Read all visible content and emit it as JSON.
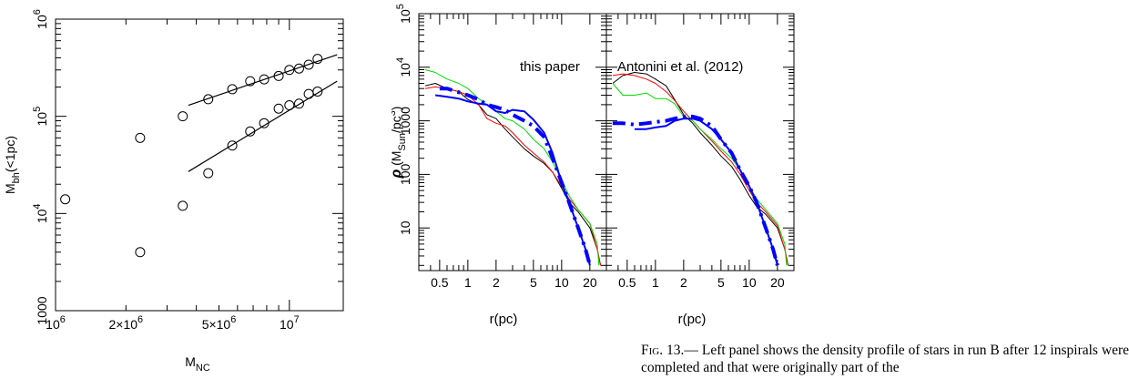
{
  "caption": {
    "label": "Fig. 13.",
    "text": "— Left panel shows the density profile of stars in run B after 12 inspirals were completed and that were originally part of the"
  },
  "chart_data": [
    {
      "type": "scatter",
      "title": "",
      "xlabel": "M_NC",
      "ylabel": "M_bh(<1pc)",
      "xscale": "log",
      "yscale": "log",
      "xlim": [
        1000000,
        17000000
      ],
      "ylim": [
        1000,
        1000000
      ],
      "x_tick_labels": [
        {
          "value": 1000000,
          "label": "10^6"
        },
        {
          "value": 2000000,
          "label": "2×10^6"
        },
        {
          "value": 5000000,
          "label": "5×10^6"
        },
        {
          "value": 10000000,
          "label": "10^7"
        }
      ],
      "y_tick_labels": [
        {
          "value": 1000,
          "label": "1000"
        },
        {
          "value": 10000,
          "label": "10^4"
        },
        {
          "value": 100000,
          "label": "10^5"
        },
        {
          "value": 1000000,
          "label": "10^6"
        }
      ],
      "series": [
        {
          "marker": "open-circle",
          "points": [
            [
              1100000,
              14000
            ],
            [
              2300000,
              60000
            ],
            [
              2300000,
              4000
            ],
            [
              3500000,
              100000
            ],
            [
              3500000,
              12000
            ],
            [
              4500000,
              26000
            ],
            [
              4500000,
              150000
            ],
            [
              5700000,
              190000
            ],
            [
              5700000,
              50000
            ],
            [
              6800000,
              230000
            ],
            [
              6800000,
              70000
            ],
            [
              7800000,
              240000
            ],
            [
              7800000,
              85000
            ],
            [
              9000000,
              260000
            ],
            [
              9000000,
              120000
            ],
            [
              10000000,
              300000
            ],
            [
              10000000,
              130000
            ],
            [
              11000000,
              310000
            ],
            [
              11000000,
              135000
            ],
            [
              12100000,
              340000
            ],
            [
              12100000,
              170000
            ],
            [
              13200000,
              390000
            ],
            [
              13200000,
              180000
            ]
          ]
        }
      ],
      "fit_lines": [
        {
          "x": [
            3700000,
            16000000
          ],
          "y": [
            130000,
            430000
          ]
        },
        {
          "x": [
            3700000,
            16000000
          ],
          "y": [
            27000,
            230000
          ]
        }
      ],
      "grid": false
    },
    {
      "type": "line",
      "panels": [
        {
          "label": "this paper",
          "series": [
            {
              "color": "#000000",
              "width": 1,
              "dash": "solid",
              "x": [
                0.35,
                0.45,
                0.6,
                0.8,
                1.0,
                1.3,
                1.6,
                2.0,
                2.5,
                3.0,
                4.0,
                5.0,
                6.5,
                8.0,
                10.0,
                12.0,
                15.0,
                20.0,
                24.0,
                26.0
              ],
              "y": [
                4500,
                5000,
                4000,
                3500,
                2500,
                2000,
                1300,
                1100,
                700,
                500,
                300,
                220,
                160,
                110,
                55,
                30,
                20,
                10,
                4,
                2
              ]
            },
            {
              "color": "#ff0000",
              "width": 1,
              "dash": "solid",
              "x": [
                0.35,
                0.45,
                0.6,
                0.8,
                1.0,
                1.3,
                1.6,
                2.0,
                2.5,
                3.0,
                4.0,
                5.0,
                6.5,
                8.0,
                10.0,
                12.0,
                15.0,
                20.0,
                24.0,
                26.0
              ],
              "y": [
                4000,
                4300,
                4000,
                3500,
                3000,
                2000,
                1100,
                900,
                800,
                600,
                350,
                250,
                170,
                110,
                60,
                35,
                22,
                12,
                4,
                2
              ]
            },
            {
              "color": "#00dd00",
              "width": 1,
              "dash": "solid",
              "x": [
                0.35,
                0.45,
                0.6,
                0.8,
                1.0,
                1.3,
                1.6,
                2.0,
                2.5,
                3.0,
                4.0,
                5.0,
                6.5,
                8.0,
                10.0,
                12.0,
                15.0,
                20.0,
                24.0,
                25.0
              ],
              "y": [
                9000,
                8000,
                6000,
                5000,
                4000,
                2600,
                2000,
                1500,
                1100,
                1000,
                700,
                450,
                300,
                170,
                80,
                40,
                22,
                12,
                5,
                2
              ]
            },
            {
              "color": "#0000ff",
              "width": 2,
              "dash": "solid",
              "x": [
                0.45,
                0.6,
                0.8,
                1.0,
                1.3,
                1.6,
                2.0,
                2.5,
                3.0,
                4.0,
                5.0,
                6.5,
                8.0,
                10.0,
                12.0,
                15.0,
                18.0,
                20.0
              ],
              "y": [
                3000,
                2800,
                2600,
                2300,
                2100,
                2000,
                1500,
                1400,
                1600,
                1500,
                1050,
                600,
                250,
                70,
                30,
                10,
                4,
                2
              ]
            },
            {
              "color": "#0000ff",
              "width": 4,
              "dash": "dashdot",
              "x": [
                0.5,
                0.6,
                0.8,
                1.0,
                1.3,
                1.6,
                2.0,
                2.5,
                3.0,
                4.0,
                5.0,
                6.5,
                8.0,
                10.0,
                12.0,
                15.0,
                18.0,
                20.0
              ],
              "y": [
                4000,
                4000,
                3400,
                3000,
                2500,
                2000,
                1800,
                1600,
                1300,
                1000,
                800,
                500,
                200,
                70,
                30,
                10,
                4,
                2
              ]
            }
          ]
        },
        {
          "label": "Antonini et al. (2012)",
          "series": [
            {
              "color": "#000000",
              "width": 1,
              "dash": "solid",
              "x": [
                0.35,
                0.45,
                0.6,
                0.8,
                1.0,
                1.3,
                1.6,
                2.0,
                2.5,
                3.0,
                4.0,
                5.0,
                6.5,
                8.0,
                10.0,
                12.0,
                15.0,
                20.0,
                24.0,
                26.0
              ],
              "y": [
                5000,
                7000,
                8000,
                7500,
                6000,
                4500,
                2500,
                1300,
                900,
                600,
                350,
                220,
                140,
                80,
                40,
                25,
                18,
                10,
                4,
                2
              ]
            },
            {
              "color": "#ff0000",
              "width": 1,
              "dash": "solid",
              "x": [
                0.35,
                0.45,
                0.6,
                0.8,
                1.0,
                1.3,
                1.6,
                2.0,
                2.5,
                3.0,
                4.0,
                5.0,
                6.5,
                8.0,
                10.0,
                12.0,
                15.0,
                20.0,
                24.0,
                26.0
              ],
              "y": [
                7000,
                7500,
                7000,
                6000,
                5000,
                3500,
                2400,
                1500,
                1000,
                700,
                420,
                270,
                170,
                100,
                50,
                30,
                20,
                11,
                4,
                2
              ]
            },
            {
              "color": "#00dd00",
              "width": 1,
              "dash": "solid",
              "x": [
                0.35,
                0.45,
                0.6,
                0.8,
                1.0,
                1.3,
                1.6,
                2.0,
                2.5,
                3.0,
                4.0,
                5.0,
                6.5,
                8.0,
                10.0,
                12.0,
                15.0,
                20.0,
                24.0,
                25.0
              ],
              "y": [
                5000,
                3000,
                3000,
                3300,
                2600,
                2600,
                2100,
                1200,
                1000,
                700,
                450,
                300,
                200,
                120,
                60,
                35,
                22,
                12,
                5,
                2
              ]
            },
            {
              "color": "#0000ff",
              "width": 2,
              "dash": "solid",
              "x": [
                0.6,
                0.8,
                1.0,
                1.3,
                1.6,
                2.0,
                2.5,
                3.0,
                4.0,
                5.0,
                6.5,
                8.0,
                10.0,
                12.0,
                15.0,
                18.0,
                20.0
              ],
              "y": [
                700,
                700,
                750,
                800,
                1000,
                1100,
                1100,
                1000,
                700,
                450,
                250,
                120,
                60,
                30,
                10,
                4,
                2
              ]
            },
            {
              "color": "#0000ff",
              "width": 4,
              "dash": "dashdot",
              "x": [
                0.35,
                0.45,
                0.6,
                0.8,
                1.0,
                1.3,
                1.6,
                2.0,
                2.5,
                3.0,
                4.0,
                5.0,
                6.5,
                8.0,
                10.0,
                12.0,
                15.0,
                18.0,
                20.0
              ],
              "y": [
                900,
                900,
                850,
                900,
                950,
                1000,
                1100,
                1200,
                1200,
                1100,
                800,
                450,
                250,
                120,
                60,
                30,
                10,
                4,
                2
              ]
            }
          ]
        }
      ],
      "xlabel": "r(pc)",
      "ylabel": "ρ (M_Sun/pc^3)",
      "xscale": "log",
      "yscale": "log",
      "xlim": [
        0.3,
        30
      ],
      "ylim": [
        1.6,
        100000
      ],
      "x_tick_labels": [
        "0.5",
        "1",
        "2",
        "5",
        "10",
        "20"
      ],
      "x_tick_values": [
        0.5,
        1,
        2,
        5,
        10,
        20
      ],
      "y_tick_labels": [
        {
          "value": 10,
          "label": "10"
        },
        {
          "value": 100,
          "label": "100"
        },
        {
          "value": 1000,
          "label": "1000"
        },
        {
          "value": 10000,
          "label": "10^4"
        },
        {
          "value": 100000,
          "label": "10^5"
        }
      ],
      "grid": false
    }
  ]
}
